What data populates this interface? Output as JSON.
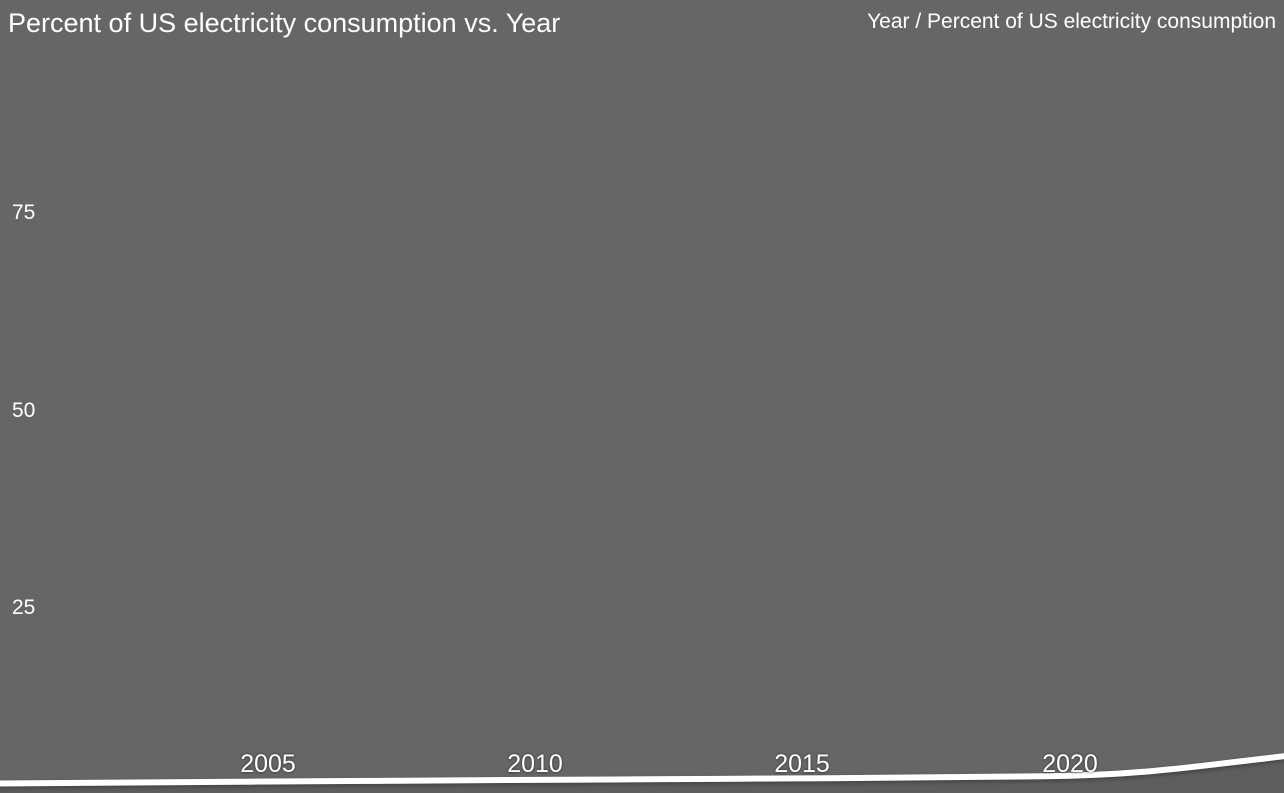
{
  "title": "Percent of US electricity consumption vs. Year",
  "legend": "Year / Percent of US electricity consumption",
  "colors": {
    "background": "#666666",
    "line": "#ffffff",
    "text": "#ffffff"
  },
  "chart_data": {
    "type": "area",
    "title": "Percent of US electricity consumption vs. Year",
    "xlabel": "Year",
    "ylabel": "Percent of US electricity consumption",
    "legend_label": "Year / Percent of US electricity consumption",
    "legend_position": "top-right",
    "grid": false,
    "xlim": [
      2000,
      2024
    ],
    "ylim": [
      0,
      100
    ],
    "xticks": [
      "2005",
      "2010",
      "2015",
      "2020"
    ],
    "yticks": [
      "75",
      "50",
      "25"
    ],
    "x": [
      2000,
      2001,
      2002,
      2003,
      2004,
      2005,
      2006,
      2007,
      2008,
      2009,
      2010,
      2011,
      2012,
      2013,
      2014,
      2015,
      2016,
      2017,
      2018,
      2019,
      2020,
      2021,
      2022,
      2023,
      2024
    ],
    "values": [
      2.85,
      2.9,
      2.95,
      3.0,
      3.05,
      3.1,
      3.14,
      3.18,
      3.22,
      3.26,
      3.3,
      3.34,
      3.38,
      3.42,
      3.46,
      3.5,
      3.55,
      3.61,
      3.67,
      3.73,
      3.8,
      4.1,
      4.7,
      5.5,
      6.3
    ]
  }
}
